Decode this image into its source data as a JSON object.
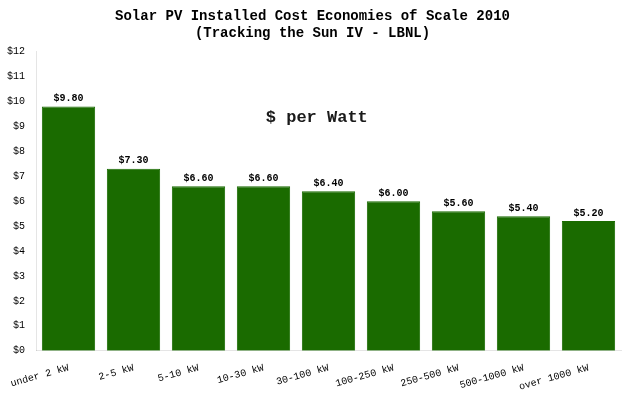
{
  "chart_data": {
    "type": "bar",
    "title": "Solar PV Installed Cost Economies of Scale 2010",
    "subtitle": "(Tracking the Sun IV - LBNL)",
    "annotation": "$ per Watt",
    "categories": [
      "under 2 kW",
      "2-5 kW",
      "5-10 kW",
      "10-30 kW",
      "30-100 kW",
      "100-250 kW",
      "250-500 kW",
      "500-1000 kW",
      "over 1000 kW"
    ],
    "values": [
      9.8,
      7.3,
      6.6,
      6.6,
      6.4,
      6.0,
      5.6,
      5.4,
      5.2
    ],
    "value_labels": [
      "$9.80",
      "$7.30",
      "$6.60",
      "$6.60",
      "$6.40",
      "$6.00",
      "$5.60",
      "$5.40",
      "$5.20"
    ],
    "data_labels": true,
    "color": "#1a6b00",
    "ylim": [
      0,
      12
    ],
    "yticks": [
      {
        "value": 0,
        "label": "$0"
      },
      {
        "value": 1,
        "label": "$1"
      },
      {
        "value": 2,
        "label": "$2"
      },
      {
        "value": 3,
        "label": "$3"
      },
      {
        "value": 4,
        "label": "$4"
      },
      {
        "value": 5,
        "label": "$5"
      },
      {
        "value": 6,
        "label": "$6"
      },
      {
        "value": 7,
        "label": "$7"
      },
      {
        "value": 8,
        "label": "$8"
      },
      {
        "value": 9,
        "label": "$9"
      },
      {
        "value": 10,
        "label": "$10"
      },
      {
        "value": 11,
        "label": "$11"
      },
      {
        "value": 12,
        "label": "$12"
      }
    ],
    "grid": false
  }
}
